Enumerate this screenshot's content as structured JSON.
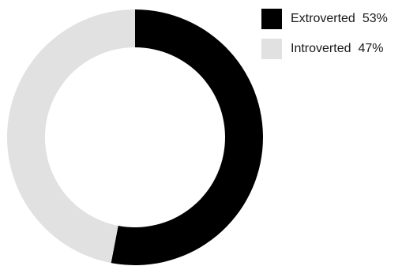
{
  "chart_data": {
    "type": "pie",
    "donut": true,
    "legend_position": "top-right",
    "slices": [
      {
        "label": "Extroverted",
        "value": 53,
        "value_label": "53%",
        "color": "#000000"
      },
      {
        "label": "Introverted",
        "value": 47,
        "value_label": "47%",
        "color": "#e1e1e2"
      }
    ]
  }
}
